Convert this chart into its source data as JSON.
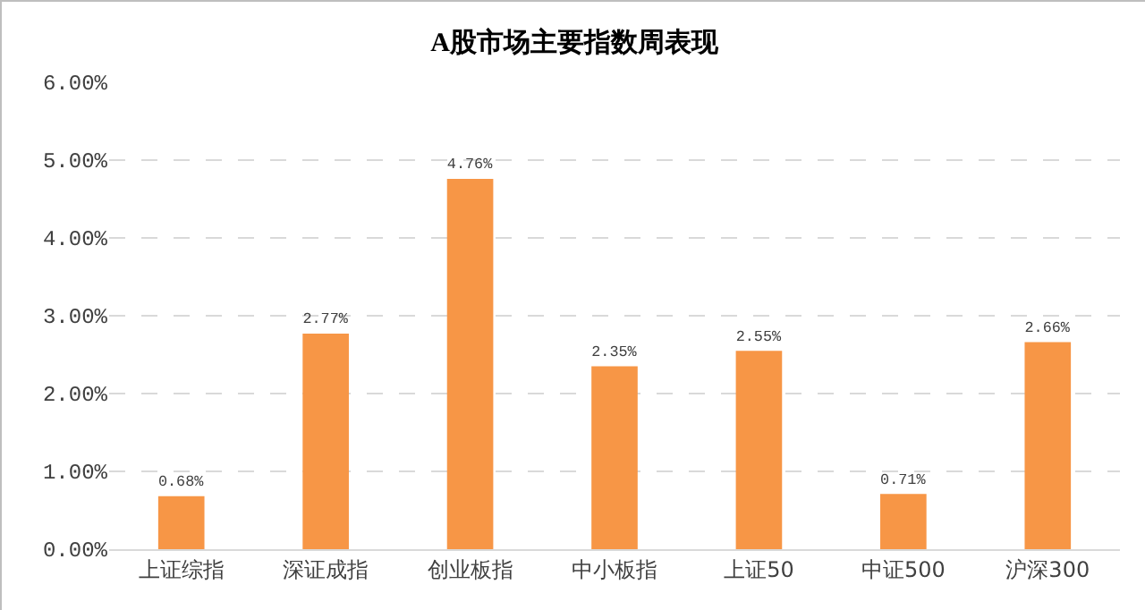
{
  "chart_data": {
    "type": "bar",
    "title": "A股市场主要指数周表现",
    "categories": [
      "上证综指",
      "深证成指",
      "创业板指",
      "中小板指",
      "上证50",
      "中证500",
      "沪深300"
    ],
    "values": [
      0.68,
      2.77,
      4.76,
      2.35,
      2.55,
      0.71,
      2.66
    ],
    "value_labels": [
      "0.68%",
      "2.77%",
      "4.76%",
      "2.35%",
      "2.55%",
      "0.71%",
      "2.66%"
    ],
    "color": "#f79646",
    "ylim": [
      0,
      6
    ],
    "yticks": [
      {
        "value": 0,
        "label": "0.00%"
      },
      {
        "value": 1,
        "label": "1.00%"
      },
      {
        "value": 2,
        "label": "2.00%"
      },
      {
        "value": 3,
        "label": "3.00%"
      },
      {
        "value": 4,
        "label": "4.00%"
      },
      {
        "value": 5,
        "label": "5.00%"
      },
      {
        "value": 6,
        "label": "6.00%"
      }
    ],
    "grid": "y"
  }
}
